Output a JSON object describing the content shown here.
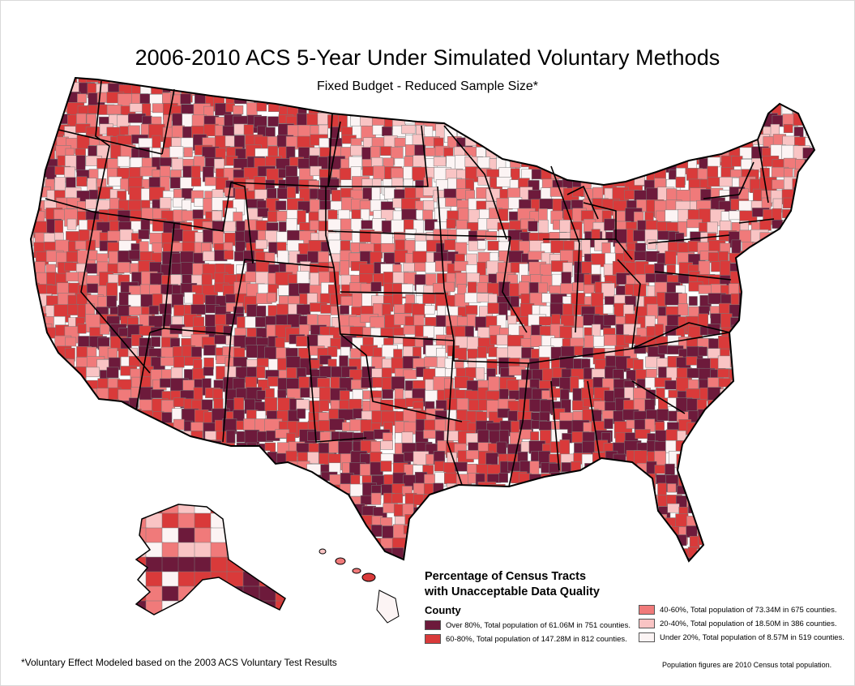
{
  "map": {
    "title": "2006-2010 ACS 5-Year Under Simulated Voluntary Methods",
    "subtitle": "Fixed Budget - Reduced Sample Size*"
  },
  "legend": {
    "title_line1": "Percentage of Census Tracts",
    "title_line2": "with Unacceptable Data Quality",
    "subtitle": "County",
    "items": [
      {
        "label": "Over 80%, Total population of 61.06M in 751 counties.",
        "color": "#6d1a3b"
      },
      {
        "label": "60-80%, Total population of 147.28M in 812 counties.",
        "color": "#d93a3a"
      },
      {
        "label": "40-60%, Total population of 73.34M in 675 counties.",
        "color": "#f07a7a"
      },
      {
        "label": "20-40%, Total population of 18.50M in 386 counties.",
        "color": "#f9c4c4"
      },
      {
        "label": "Under 20%, Total population of 8.57M in 519 counties.",
        "color": "#fcf4f4"
      }
    ]
  },
  "footnote": "*Voluntary Effect Modeled based on the 2003 ACS Voluntary Test Results",
  "population_note": "Population figures are 2010 Census total population."
}
